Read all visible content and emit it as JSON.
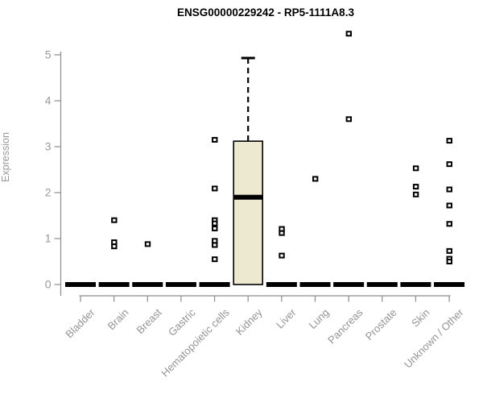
{
  "colors": {
    "box_fill": "#EDE8D0",
    "box_stroke": "#000000",
    "median": "#000000",
    "point_stroke": "#000000",
    "point_fill": "#ffffff",
    "axis": "#8c8c8c",
    "tick_label": "#989898",
    "title": "#000000",
    "background": "#ffffff"
  },
  "chart_data": {
    "type": "boxplot",
    "title": "ENSG00000229242 - RP5-1111A8.3",
    "xlabel": "",
    "ylabel": "Expression",
    "ylim": [
      0,
      5.6
    ],
    "yticks": [
      0,
      1,
      2,
      3,
      4,
      5
    ],
    "grid": false,
    "legend": "none",
    "point_shape": "open-square",
    "categories": [
      "Bladder",
      "Brain",
      "Breast",
      "Gastric",
      "Hematopoietic cells",
      "Kidney",
      "Liver",
      "Lung",
      "Pancreas",
      "Prostate",
      "Skin",
      "Unknown / Other"
    ],
    "boxes": [
      {
        "category": "Bladder",
        "q1": 0,
        "median": 0,
        "q3": 0,
        "whisker_low": 0,
        "whisker_high": 0
      },
      {
        "category": "Brain",
        "q1": 0,
        "median": 0,
        "q3": 0,
        "whisker_low": 0,
        "whisker_high": 0
      },
      {
        "category": "Breast",
        "q1": 0,
        "median": 0,
        "q3": 0,
        "whisker_low": 0,
        "whisker_high": 0
      },
      {
        "category": "Gastric",
        "q1": 0,
        "median": 0,
        "q3": 0,
        "whisker_low": 0,
        "whisker_high": 0
      },
      {
        "category": "Hematopoietic cells",
        "q1": 0,
        "median": 0,
        "q3": 0,
        "whisker_low": 0,
        "whisker_high": 0
      },
      {
        "category": "Kidney",
        "q1": 0,
        "median": 1.9,
        "q3": 3.12,
        "whisker_low": 0,
        "whisker_high": 4.93
      },
      {
        "category": "Liver",
        "q1": 0,
        "median": 0,
        "q3": 0,
        "whisker_low": 0,
        "whisker_high": 0
      },
      {
        "category": "Lung",
        "q1": 0,
        "median": 0,
        "q3": 0,
        "whisker_low": 0,
        "whisker_high": 0
      },
      {
        "category": "Pancreas",
        "q1": 0,
        "median": 0,
        "q3": 0,
        "whisker_low": 0,
        "whisker_high": 0
      },
      {
        "category": "Prostate",
        "q1": 0,
        "median": 0,
        "q3": 0,
        "whisker_low": 0,
        "whisker_high": 0
      },
      {
        "category": "Skin",
        "q1": 0,
        "median": 0,
        "q3": 0,
        "whisker_low": 0,
        "whisker_high": 0
      },
      {
        "category": "Unknown / Other",
        "q1": 0,
        "median": 0,
        "q3": 0,
        "whisker_low": 0,
        "whisker_high": 0
      }
    ],
    "outlier_points": [
      {
        "category": "Brain",
        "values": [
          1.4,
          0.92,
          0.83
        ]
      },
      {
        "category": "Breast",
        "values": [
          0.88
        ]
      },
      {
        "category": "Hematopoietic cells",
        "values": [
          3.15,
          2.09,
          1.4,
          1.33,
          1.22,
          0.95,
          0.86,
          0.55
        ]
      },
      {
        "category": "Liver",
        "values": [
          1.21,
          1.12,
          0.63
        ]
      },
      {
        "category": "Lung",
        "values": [
          2.3
        ]
      },
      {
        "category": "Pancreas",
        "values": [
          5.46,
          3.6
        ]
      },
      {
        "category": "Skin",
        "values": [
          2.53,
          2.13,
          1.96
        ]
      },
      {
        "category": "Unknown / Other",
        "values": [
          3.13,
          2.62,
          2.07,
          1.72,
          1.32,
          0.73,
          0.56,
          0.5
        ]
      }
    ]
  }
}
